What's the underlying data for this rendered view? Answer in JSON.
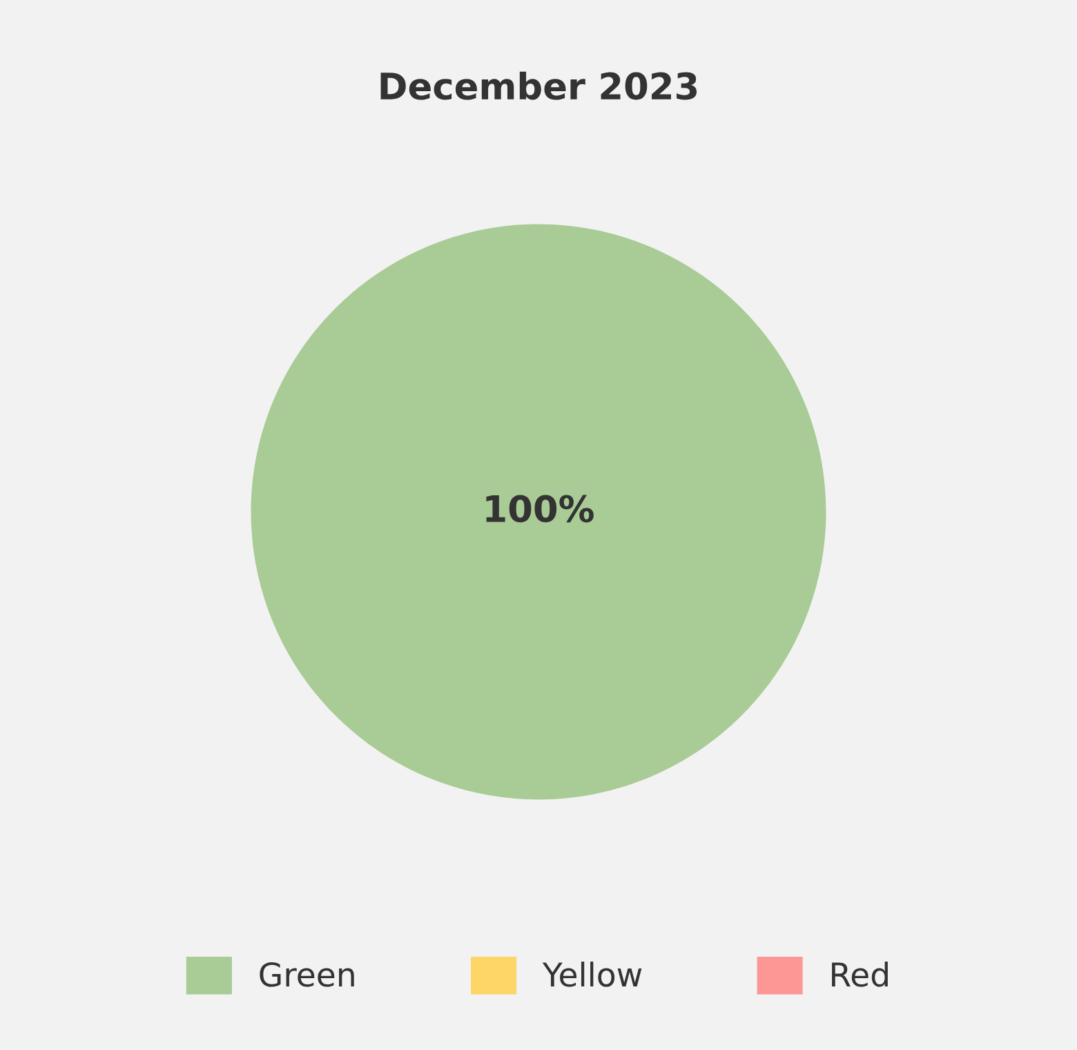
{
  "chart_data": {
    "type": "pie",
    "title": "December 2023",
    "categories": [
      "Green",
      "Yellow",
      "Red"
    ],
    "values": [
      100,
      0,
      0
    ],
    "colors": [
      "#a9cb95",
      "#fdd667",
      "#fd9796"
    ],
    "value_labels": [
      "100%",
      null,
      null
    ],
    "legend": "bottom"
  }
}
